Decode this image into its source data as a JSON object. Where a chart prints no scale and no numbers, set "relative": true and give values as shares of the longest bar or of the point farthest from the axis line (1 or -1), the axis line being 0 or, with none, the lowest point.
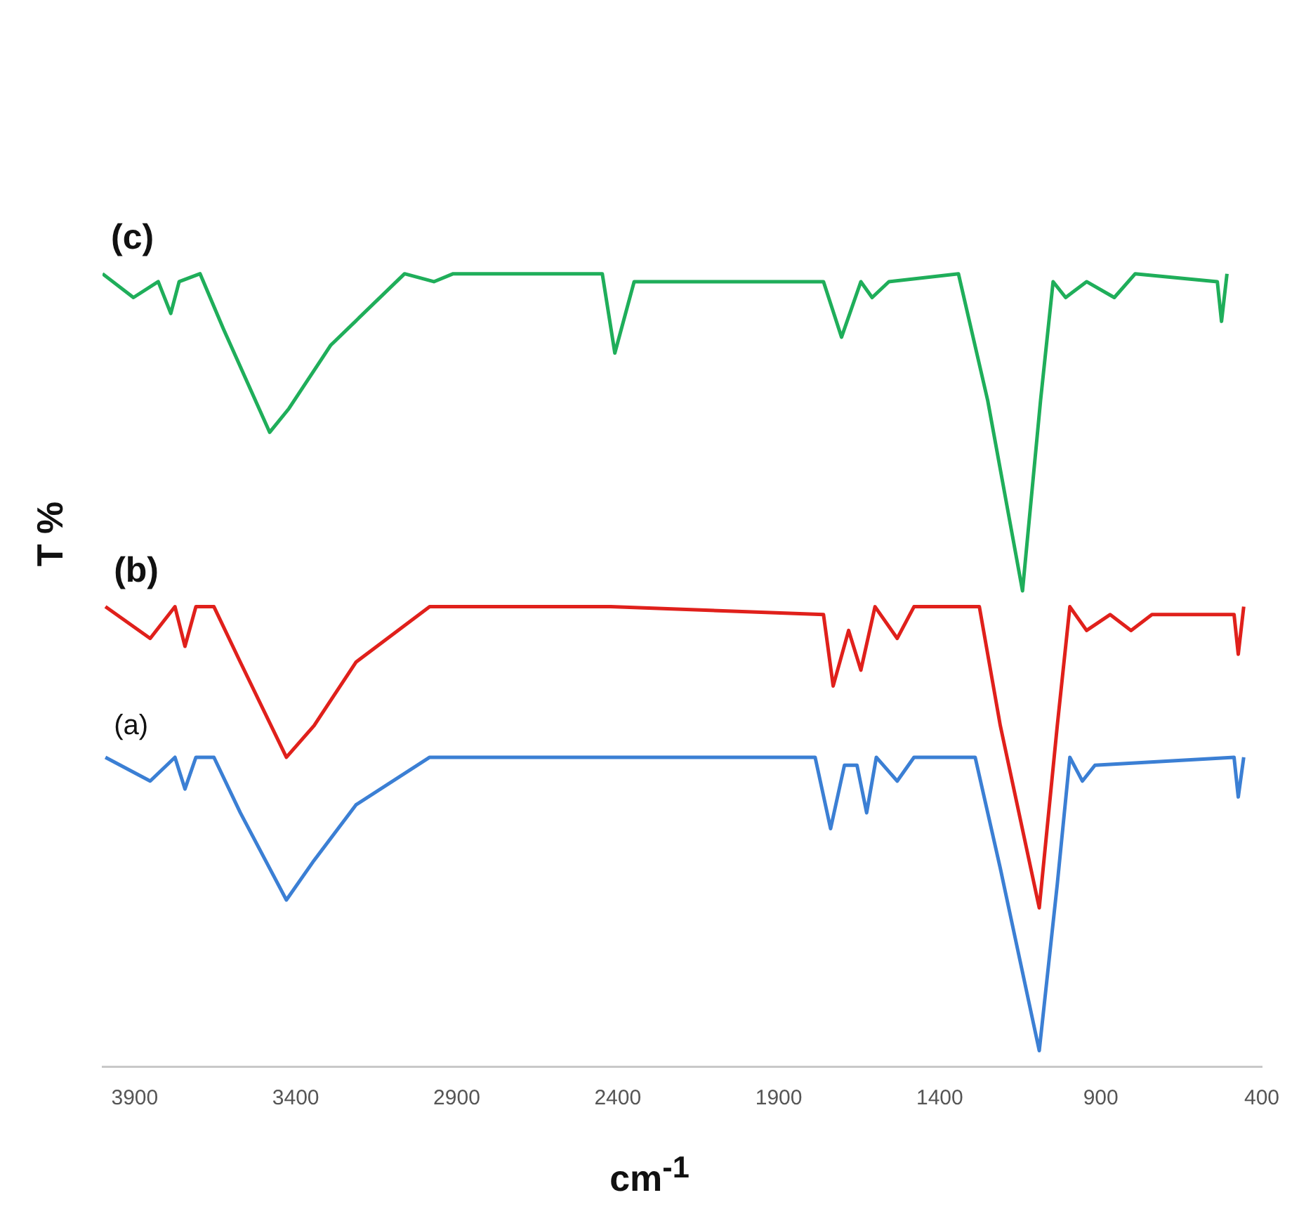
{
  "chart_data": {
    "type": "line",
    "relative": true,
    "xlabel": "cm$^{-1}$",
    "ylabel": "T %",
    "xlim": [
      4000,
      400
    ],
    "xticks": [
      3900,
      3400,
      2900,
      2400,
      1900,
      1400,
      900,
      400
    ],
    "grid": false,
    "legend": false,
    "marker": "none",
    "line_style": "solid",
    "series": [
      {
        "name": "(a)",
        "color": "#3b7fd4",
        "x": [
          3991,
          3852,
          3775,
          3744,
          3710,
          3654,
          3572,
          3429,
          3343,
          3213,
          2984,
          2422,
          1787,
          1739,
          1696,
          1657,
          1627,
          1597,
          1532,
          1480,
          1290,
          1212,
          1091,
          1035,
          996,
          957,
          918,
          486,
          473,
          456
        ],
        "values": [
          0.39,
          0.36,
          0.39,
          0.35,
          0.39,
          0.39,
          0.32,
          0.21,
          0.26,
          0.33,
          0.39,
          0.39,
          0.39,
          0.3,
          0.38,
          0.38,
          0.32,
          0.39,
          0.36,
          0.39,
          0.39,
          0.25,
          0.02,
          0.23,
          0.39,
          0.36,
          0.38,
          0.39,
          0.34,
          0.39
        ]
      },
      {
        "name": "(b)",
        "color": "#e0201b",
        "x": [
          3991,
          3852,
          3775,
          3744,
          3710,
          3654,
          3572,
          3429,
          3343,
          3213,
          2984,
          2422,
          1761,
          1731,
          1683,
          1645,
          1601,
          1532,
          1480,
          1277,
          1212,
          1091,
          1035,
          996,
          944,
          871,
          806,
          741,
          486,
          473,
          456
        ],
        "values": [
          0.58,
          0.54,
          0.58,
          0.53,
          0.58,
          0.58,
          0.51,
          0.39,
          0.43,
          0.51,
          0.58,
          0.58,
          0.57,
          0.48,
          0.55,
          0.5,
          0.58,
          0.54,
          0.58,
          0.58,
          0.43,
          0.2,
          0.43,
          0.58,
          0.55,
          0.57,
          0.55,
          0.57,
          0.57,
          0.52,
          0.58
        ]
      },
      {
        "name": "(c)",
        "color": "#1fae5a",
        "x": [
          4000,
          3904,
          3827,
          3788,
          3762,
          3697,
          3624,
          3481,
          3421,
          3291,
          3062,
          2971,
          2911,
          2448,
          2409,
          2349,
          1761,
          1705,
          1645,
          1610,
          1558,
          1342,
          1251,
          1143,
          1087,
          1048,
          1009,
          944,
          858,
          793,
          538,
          525,
          508
        ],
        "values": [
          1.0,
          0.97,
          0.99,
          0.95,
          0.99,
          1.0,
          0.93,
          0.8,
          0.83,
          0.91,
          1.0,
          0.99,
          1.0,
          1.0,
          0.9,
          0.99,
          0.99,
          0.92,
          0.99,
          0.97,
          0.99,
          1.0,
          0.84,
          0.6,
          0.84,
          0.99,
          0.97,
          0.99,
          0.97,
          1.0,
          0.99,
          0.94,
          1.0
        ]
      }
    ]
  }
}
